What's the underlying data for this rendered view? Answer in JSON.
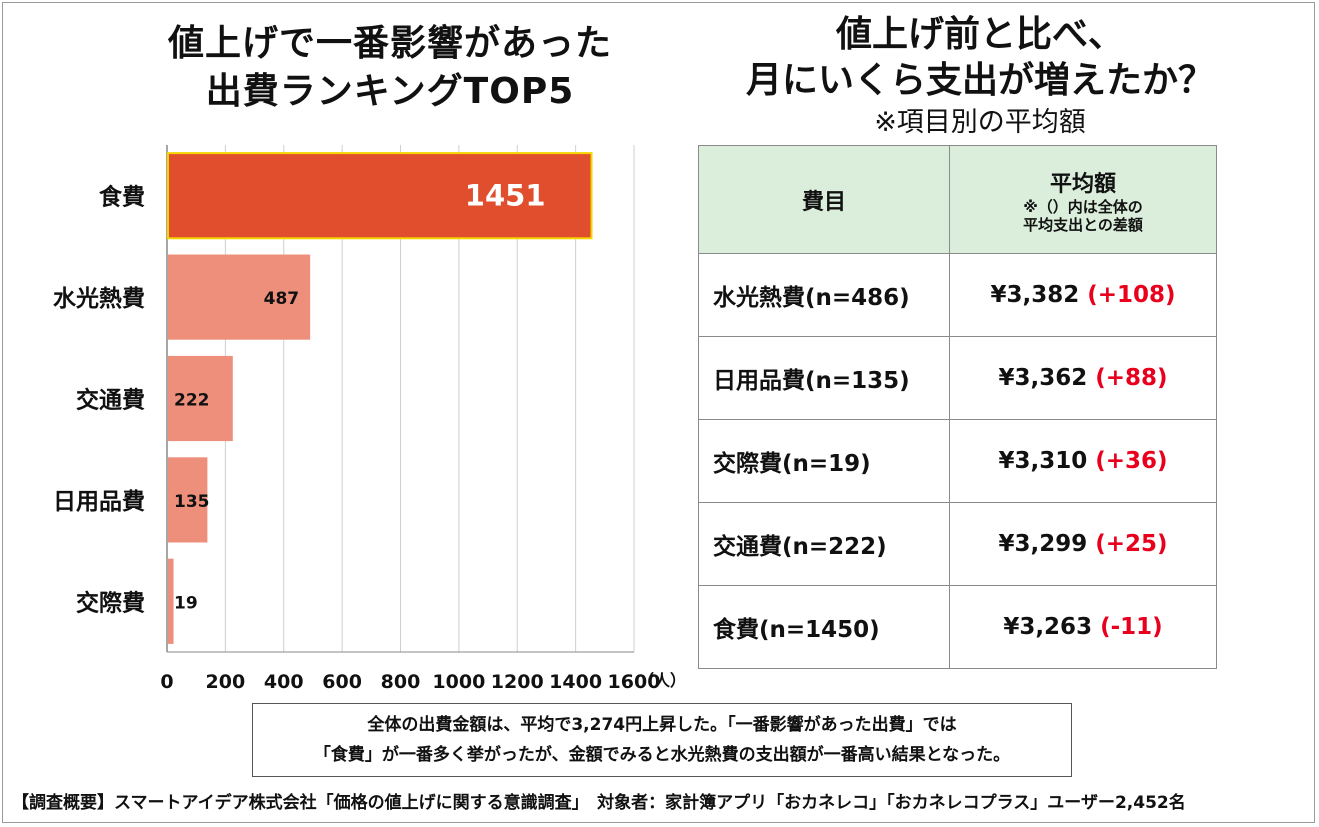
{
  "left_title": [
    "値上げで一番影響があった",
    "出費ランキングTOP5"
  ],
  "right_title": [
    "値上げ前と比べ、",
    "月にいくら支出が増えたか？"
  ],
  "right_subtitle": "※項目別の平均額",
  "chart_data": {
    "type": "bar",
    "orientation": "horizontal",
    "title": "値上げで一番影響があった出費ランキングTOP5",
    "categories": [
      "食費",
      "水光熱費",
      "交通費",
      "日用品費",
      "交際費"
    ],
    "values": [
      1451,
      487,
      222,
      135,
      19
    ],
    "xlim": [
      0,
      1600
    ],
    "xticks": [
      0,
      200,
      400,
      600,
      800,
      1000,
      1200,
      1400,
      1600
    ],
    "xlabel": "（人）",
    "colors": {
      "highlight": "#e04e2e",
      "highlight_border": "#f5d400",
      "default": "#ee8f7b"
    }
  },
  "table": {
    "header_item": "費目",
    "header_avg": "平均額",
    "header_note": [
      "※（）内は全体の",
      "平均支出との差額"
    ],
    "rows": [
      {
        "item": "水光熱費(n=486)",
        "value": "¥3,382",
        "diff": "(+108)"
      },
      {
        "item": "日用品費(n=135)",
        "value": "¥3,362",
        "diff": "(+88)"
      },
      {
        "item": "交際費(n=19)",
        "value": "¥3,310",
        "diff": "(+36)"
      },
      {
        "item": "交通費(n=222)",
        "value": "¥3,299",
        "diff": "(+25)"
      },
      {
        "item": "食費(n=1450)",
        "value": "¥3,263",
        "diff": "(-11)"
      }
    ]
  },
  "summary": [
    "全体の出費金額は、平均で3,274円上昇した。「一番影響があった出費」では",
    "「食費」が一番多く挙がったが、金額でみると水光熱費の支出額が一番高い結果となった。"
  ],
  "footer": "【調査概要】スマートアイデア株式会社「価格の値上げに関する意識調査」　対象者：家計簿アプリ「おカネレコ」「おカネレコプラス」ユーザー2,452名"
}
